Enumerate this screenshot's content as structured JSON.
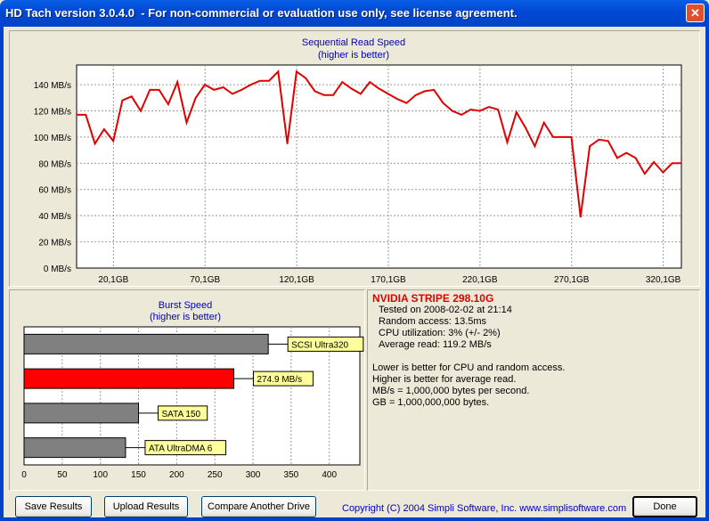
{
  "window": {
    "title": "HD Tach version 3.0.4.0  - For non-commercial or evaluation use only, see license agreement.",
    "close_glyph": "✕"
  },
  "seq_chart": {
    "title": "Sequential Read Speed",
    "subtitle": "(higher is better)",
    "y_ticks": [
      "0 MB/s",
      "20 MB/s",
      "40 MB/s",
      "60 MB/s",
      "80 MB/s",
      "100 MB/s",
      "120 MB/s",
      "140 MB/s"
    ],
    "x_ticks": [
      "20,1GB",
      "70,1GB",
      "120,1GB",
      "170,1GB",
      "220,1GB",
      "270,1GB",
      "320,1GB"
    ],
    "line_color": "#e00000"
  },
  "burst_chart": {
    "title": "Burst Speed",
    "subtitle": "(higher is better)",
    "x_ticks": [
      "0",
      "50",
      "100",
      "150",
      "200",
      "250",
      "300",
      "350",
      "400"
    ],
    "bar_labels": [
      "SCSI Ultra320",
      "274.9 MB/s",
      "SATA 150",
      "ATA UltraDMA 6"
    ],
    "bar_colors": [
      "#808080",
      "#ff0000",
      "#808080",
      "#808080"
    ]
  },
  "chart_data": [
    {
      "type": "line",
      "title": "Sequential Read Speed",
      "subtitle": "(higher is better)",
      "xlabel": "",
      "ylabel": "",
      "ylim": [
        0,
        155
      ],
      "xlim": [
        0,
        330
      ],
      "grid": true,
      "series": [
        {
          "x": [
            0,
            5,
            10,
            15,
            20,
            25,
            30,
            35,
            40,
            45,
            50,
            55,
            60,
            65,
            70,
            75,
            80,
            85,
            90,
            95,
            100,
            105,
            110,
            115,
            120,
            125,
            130,
            135,
            140,
            145,
            150,
            155,
            160,
            165,
            170,
            175,
            180,
            185,
            190,
            195,
            200,
            205,
            210,
            215,
            220,
            225,
            230,
            235,
            240,
            245,
            250,
            255,
            260,
            265,
            270,
            275,
            280,
            285,
            290,
            295,
            300,
            305,
            310,
            315,
            320,
            325,
            330
          ],
          "y": [
            117,
            117,
            95,
            106,
            97,
            128,
            131,
            120,
            136,
            136,
            125,
            142,
            111,
            130,
            140,
            136,
            138,
            133,
            136,
            140,
            143,
            143,
            150,
            95,
            150,
            145,
            135,
            132,
            132,
            142,
            137,
            133,
            142,
            137,
            133,
            129,
            126,
            132,
            135,
            136,
            126,
            120,
            117,
            121,
            120,
            123,
            121,
            96,
            119,
            107,
            93,
            111,
            100,
            100,
            100,
            39,
            93,
            98,
            97,
            84,
            88,
            84,
            72,
            81,
            73,
            80,
            80
          ]
        }
      ]
    },
    {
      "type": "bar",
      "orientation": "horizontal",
      "title": "Burst Speed",
      "subtitle": "(higher is better)",
      "categories": [
        "SCSI Ultra320",
        "NVIDIA STRIPE 298.10G",
        "SATA 150",
        "ATA UltraDMA 6"
      ],
      "values": [
        320,
        274.9,
        150,
        133
      ],
      "xlim": [
        0,
        440
      ],
      "grid": true
    }
  ],
  "info": {
    "drive_name": "NVIDIA STRIPE 298.10G",
    "tested_on": "Tested on 2008-02-02 at 21:14",
    "random_access": "Random access: 13.5ms",
    "cpu_util": "CPU utilization: 3% (+/- 2%)",
    "avg_read": "Average read: 119.2 MB/s",
    "note1": "Lower is better for CPU and random access.",
    "note2": "Higher is better for average read.",
    "note3": "MB/s = 1,000,000 bytes per second.",
    "note4": "GB = 1,000,000,000 bytes."
  },
  "footer": {
    "save_label": "Save Results",
    "upload_label": "Upload Results",
    "compare_label": "Compare Another Drive",
    "copyright": "Copyright (C) 2004 Simpli Software, Inc. www.simplisoftware.com",
    "done_label": "Done"
  }
}
